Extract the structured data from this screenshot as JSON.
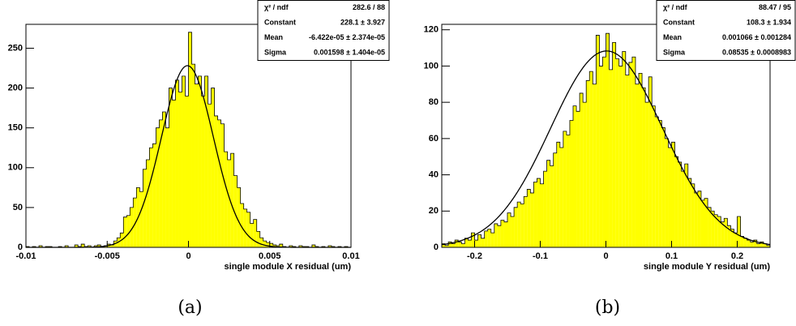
{
  "chart_data": [
    {
      "type": "histogram",
      "x_label": "single module X residual (um)",
      "caption": "(a)",
      "xlim": [
        -0.01,
        0.01
      ],
      "xticks": [
        -0.01,
        -0.005,
        0,
        0.005,
        0.01
      ],
      "ylim": [
        0,
        280
      ],
      "yticks": [
        0,
        50,
        100,
        150,
        200,
        250
      ],
      "color": "#ffff00",
      "bins": [
        -0.01,
        -0.0098,
        -0.0096,
        -0.0094,
        -0.0092,
        -0.009,
        -0.0088,
        -0.0086,
        -0.0084,
        -0.0082,
        -0.008,
        -0.0078,
        -0.0076,
        -0.0074,
        -0.0072,
        -0.007,
        -0.0068,
        -0.0066,
        -0.0064,
        -0.0062,
        -0.006,
        -0.0058,
        -0.0056,
        -0.0054,
        -0.0052,
        -0.005,
        -0.0048,
        -0.0046,
        -0.0044,
        -0.0042,
        -0.004,
        -0.0038,
        -0.0036,
        -0.0034,
        -0.0032,
        -0.003,
        -0.0028,
        -0.0026,
        -0.0024,
        -0.0022,
        -0.002,
        -0.0018,
        -0.0016,
        -0.0014,
        -0.0012,
        -0.001,
        -0.0008,
        -0.0006,
        -0.0004,
        -0.0002,
        0,
        0.0002,
        0.0004,
        0.0006,
        0.0008,
        0.001,
        0.0012,
        0.0014,
        0.0016,
        0.0018,
        0.002,
        0.0022,
        0.0024,
        0.0026,
        0.0028,
        0.003,
        0.0032,
        0.0034,
        0.0036,
        0.0038,
        0.004,
        0.0042,
        0.0044,
        0.0046,
        0.0048,
        0.005,
        0.0052,
        0.0054,
        0.0056,
        0.0058,
        0.006,
        0.0062,
        0.0064,
        0.0066,
        0.0068,
        0.007,
        0.0072,
        0.0074,
        0.0076,
        0.0078,
        0.008,
        0.0082,
        0.0084,
        0.0086,
        0.0088,
        0.009,
        0.0092,
        0.0094,
        0.0096,
        0.0098,
        0.01
      ],
      "counts": [
        1,
        0,
        1,
        0,
        2,
        0,
        1,
        1,
        0,
        0,
        1,
        0,
        2,
        0,
        0,
        3,
        1,
        4,
        1,
        2,
        0,
        2,
        3,
        1,
        2,
        4,
        3,
        8,
        12,
        18,
        38,
        40,
        50,
        62,
        75,
        70,
        98,
        110,
        125,
        130,
        150,
        160,
        170,
        150,
        200,
        185,
        210,
        195,
        215,
        190,
        270,
        230,
        205,
        215,
        190,
        215,
        180,
        200,
        165,
        160,
        155,
        120,
        110,
        118,
        90,
        75,
        55,
        48,
        44,
        30,
        35,
        20,
        12,
        8,
        6,
        5,
        3,
        2,
        4,
        1,
        0,
        2,
        1,
        0,
        2,
        1,
        1,
        0,
        3,
        1,
        0,
        1,
        0,
        2,
        1,
        0,
        1,
        0,
        1,
        0
      ],
      "fit": {
        "constant": 228.1,
        "mean": -6.422e-05,
        "sigma": 0.001598
      },
      "stats": [
        {
          "name": "χ² / ndf",
          "label": "282.6 / 88"
        },
        {
          "name": "Constant",
          "label": "228.1 ± 3.927"
        },
        {
          "name": "Mean",
          "label": "-6.422e-05 ± 2.374e-05"
        },
        {
          "name": "Sigma",
          "label": "0.001598 ± 1.404e-05"
        }
      ]
    },
    {
      "type": "histogram",
      "x_label": "single module Y residual (um)",
      "caption": "(b)",
      "xlim": [
        -0.25,
        0.25
      ],
      "xticks": [
        -0.2,
        -0.1,
        0,
        0.1,
        0.2
      ],
      "ylim": [
        0,
        123
      ],
      "yticks": [
        0,
        20,
        40,
        60,
        80,
        100,
        120
      ],
      "color": "#ffff00",
      "bins": [
        -0.25,
        -0.245,
        -0.24,
        -0.235,
        -0.23,
        -0.225,
        -0.22,
        -0.215,
        -0.21,
        -0.205,
        -0.2,
        -0.195,
        -0.19,
        -0.185,
        -0.18,
        -0.175,
        -0.17,
        -0.165,
        -0.16,
        -0.155,
        -0.15,
        -0.145,
        -0.14,
        -0.135,
        -0.13,
        -0.125,
        -0.12,
        -0.115,
        -0.11,
        -0.105,
        -0.1,
        -0.095,
        -0.09,
        -0.085,
        -0.08,
        -0.075,
        -0.07,
        -0.065,
        -0.06,
        -0.055,
        -0.05,
        -0.045,
        -0.04,
        -0.035,
        -0.03,
        -0.025,
        -0.02,
        -0.015,
        -0.01,
        -0.005,
        0,
        0.005,
        0.01,
        0.015,
        0.02,
        0.025,
        0.03,
        0.035,
        0.04,
        0.045,
        0.05,
        0.055,
        0.06,
        0.065,
        0.07,
        0.075,
        0.08,
        0.085,
        0.09,
        0.095,
        0.1,
        0.105,
        0.11,
        0.115,
        0.12,
        0.125,
        0.13,
        0.135,
        0.14,
        0.145,
        0.15,
        0.155,
        0.16,
        0.165,
        0.17,
        0.175,
        0.18,
        0.185,
        0.19,
        0.195,
        0.2,
        0.205,
        0.21,
        0.215,
        0.22,
        0.225,
        0.23,
        0.235,
        0.24,
        0.245,
        0.25
      ],
      "counts": [
        2,
        1,
        3,
        2,
        4,
        3,
        2,
        5,
        4,
        8,
        4,
        7,
        5,
        9,
        10,
        8,
        13,
        12,
        15,
        14,
        19,
        17,
        22,
        25,
        24,
        28,
        32,
        30,
        36,
        38,
        35,
        42,
        48,
        45,
        52,
        58,
        55,
        64,
        62,
        70,
        78,
        75,
        85,
        80,
        92,
        97,
        90,
        117,
        100,
        105,
        118,
        98,
        113,
        104,
        100,
        108,
        95,
        102,
        105,
        90,
        96,
        88,
        80,
        94,
        78,
        72,
        70,
        66,
        60,
        55,
        58,
        50,
        47,
        42,
        46,
        38,
        35,
        30,
        31,
        26,
        27,
        22,
        20,
        18,
        17,
        14,
        16,
        12,
        10,
        8,
        17,
        6,
        5,
        4,
        3,
        4,
        2,
        3,
        2,
        1
      ],
      "fit": {
        "constant": 108.3,
        "mean": 0.001066,
        "sigma": 0.08535
      },
      "stats": [
        {
          "name": "χ² / ndf",
          "label": "88.47 / 95"
        },
        {
          "name": "Constant",
          "label": "108.3 ± 1.934"
        },
        {
          "name": "Mean",
          "label": "0.001066 ± 0.001284"
        },
        {
          "name": "Sigma",
          "label": "0.08535 ± 0.0008983"
        }
      ]
    }
  ]
}
